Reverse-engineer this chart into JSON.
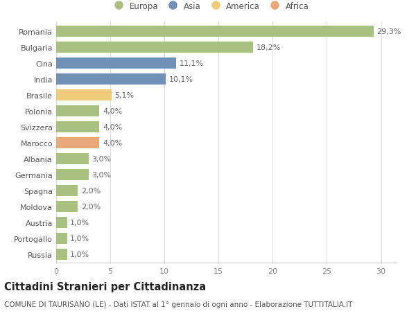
{
  "countries": [
    "Romania",
    "Bulgaria",
    "Cina",
    "India",
    "Brasile",
    "Polonia",
    "Svizzera",
    "Marocco",
    "Albania",
    "Germania",
    "Spagna",
    "Moldova",
    "Austria",
    "Portogallo",
    "Russia"
  ],
  "values": [
    29.3,
    18.2,
    11.1,
    10.1,
    5.1,
    4.0,
    4.0,
    4.0,
    3.0,
    3.0,
    2.0,
    2.0,
    1.0,
    1.0,
    1.0
  ],
  "labels": [
    "29,3%",
    "18,2%",
    "11,1%",
    "10,1%",
    "5,1%",
    "4,0%",
    "4,0%",
    "4,0%",
    "3,0%",
    "3,0%",
    "2,0%",
    "2,0%",
    "1,0%",
    "1,0%",
    "1,0%"
  ],
  "colors": [
    "#a8c080",
    "#a8c080",
    "#7090b8",
    "#7090b8",
    "#f0cb7a",
    "#a8c080",
    "#a8c080",
    "#e8a87a",
    "#a8c080",
    "#a8c080",
    "#a8c080",
    "#a8c080",
    "#a8c080",
    "#a8c080",
    "#a8c080"
  ],
  "legend_labels": [
    "Europa",
    "Asia",
    "America",
    "Africa"
  ],
  "legend_colors": [
    "#a8c080",
    "#7090b8",
    "#f0cb7a",
    "#e8a87a"
  ],
  "title": "Cittadini Stranieri per Cittadinanza",
  "subtitle": "COMUNE DI TAURISANO (LE) - Dati ISTAT al 1° gennaio di ogni anno - Elaborazione TUTTITALIA.IT",
  "xlim": [
    0,
    31.5
  ],
  "xticks": [
    0,
    5,
    10,
    15,
    20,
    25,
    30
  ],
  "background_color": "#ffffff",
  "bar_height": 0.68,
  "grid_color": "#dddddd",
  "title_fontsize": 10.5,
  "subtitle_fontsize": 7.5,
  "label_fontsize": 8,
  "tick_fontsize": 8,
  "legend_fontsize": 8.5
}
